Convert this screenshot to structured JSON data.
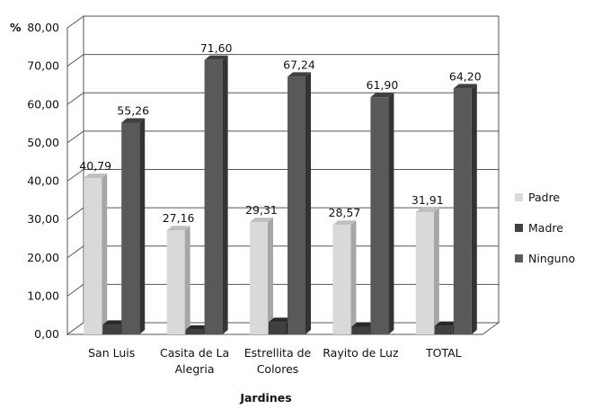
{
  "chart_data": {
    "type": "bar",
    "xlabel": "Jardines",
    "ylabel": "%",
    "ylim": [
      0,
      80
    ],
    "ytick_step": 10,
    "ytick_labels": [
      "0,00",
      "10,00",
      "20,00",
      "30,00",
      "40,00",
      "50,00",
      "60,00",
      "70,00",
      "80,00"
    ],
    "categories": [
      [
        "San Luis"
      ],
      [
        "Casita de La",
        "Alegria"
      ],
      [
        "Estrellita de",
        "Colores"
      ],
      [
        "Rayito de Luz"
      ],
      [
        "TOTAL"
      ]
    ],
    "series": [
      {
        "name": "Padre",
        "values": [
          40.79,
          27.16,
          29.31,
          28.57,
          31.91
        ],
        "labels": [
          "40,79",
          "27,16",
          "29,31",
          "28,57",
          "31,91"
        ],
        "color": "#d9d9d9",
        "side_color": "#a6a6a6",
        "top_color": "#bfbfbf"
      },
      {
        "name": "Madre",
        "values": [
          2.5,
          1.2,
          3.2,
          2.0,
          2.2
        ],
        "labels": [
          "",
          "",
          "",
          "",
          ""
        ],
        "color": "#404040",
        "side_color": "#1a1a1a",
        "top_color": "#2a2a2a"
      },
      {
        "name": "Ninguno",
        "values": [
          55.26,
          71.6,
          67.24,
          61.9,
          64.2
        ],
        "labels": [
          "55,26",
          "71,60",
          "67,24",
          "61,90",
          "64,20"
        ],
        "color": "#595959",
        "side_color": "#333333",
        "top_color": "#404040"
      }
    ],
    "legend_position": "right",
    "grid": true,
    "style": "3d-clustered-column"
  }
}
